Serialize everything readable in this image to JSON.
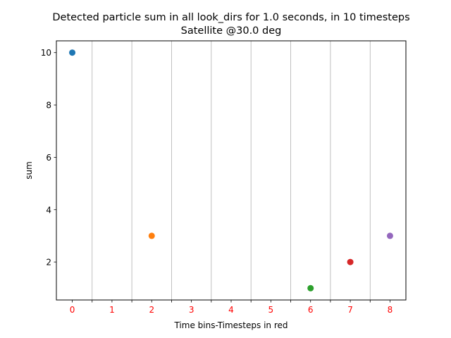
{
  "chart_data": {
    "type": "scatter",
    "title_line1": "Detected particle sum in all look_dirs for 1.0 seconds, in 10 timesteps",
    "title_line2": "Satellite @30.0 deg",
    "xlabel": "Time bins-Timesteps in red",
    "ylabel": "sum",
    "xlim": [
      -0.4,
      8.4
    ],
    "ylim": [
      0.55,
      10.45
    ],
    "x_tick_labels": [
      "0",
      "1",
      "2",
      "3",
      "4",
      "5",
      "6",
      "7",
      "8"
    ],
    "x_tick_label_color": "#ff0000",
    "y_ticks": [
      2,
      4,
      6,
      8,
      10
    ],
    "minor_ticks_with_grid": [
      0.5,
      1.5,
      2.5,
      3.5,
      4.5,
      5.5,
      6.5,
      7.5
    ],
    "points": [
      {
        "x": 0,
        "y": 10,
        "color": "#1f77b4"
      },
      {
        "x": 2,
        "y": 3,
        "color": "#ff7f0e"
      },
      {
        "x": 6,
        "y": 1,
        "color": "#2ca02c"
      },
      {
        "x": 7,
        "y": 2,
        "color": "#d62728"
      },
      {
        "x": 8,
        "y": 3,
        "color": "#9467bd"
      }
    ],
    "grid_color": "#b0b0b0",
    "legend": "none"
  }
}
